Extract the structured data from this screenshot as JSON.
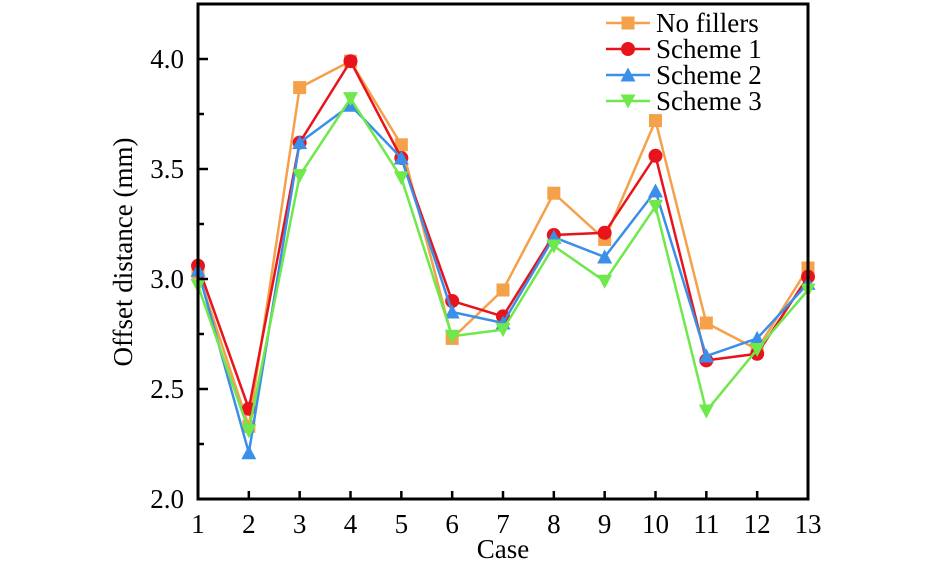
{
  "chart_data": {
    "type": "line",
    "title": "",
    "xlabel": "Case",
    "ylabel": "Offset distance (mm)",
    "x": [
      1,
      2,
      3,
      4,
      5,
      6,
      7,
      8,
      9,
      10,
      11,
      12,
      13
    ],
    "x_tick_labels": [
      "1",
      "2",
      "3",
      "4",
      "5",
      "6",
      "7",
      "8",
      "9",
      "10",
      "11",
      "12",
      "13"
    ],
    "xlim": [
      1,
      13
    ],
    "ylim": [
      2.0,
      4.25
    ],
    "y_ticks": [
      2.0,
      2.5,
      3.0,
      3.5,
      4.0
    ],
    "y_tick_labels": [
      "2.0",
      "2.5",
      "3.0",
      "3.5",
      "4.0"
    ],
    "y_minor_ticks": [
      2.25,
      2.75,
      3.25,
      3.75
    ],
    "grid": false,
    "legend_position": "top-right",
    "series": [
      {
        "name": "No fillers",
        "color": "#f5a04a",
        "marker": "square",
        "values": [
          3.03,
          2.33,
          3.87,
          3.99,
          3.61,
          2.73,
          2.95,
          3.39,
          3.18,
          3.72,
          2.8,
          2.68,
          3.05
        ]
      },
      {
        "name": "Scheme 1",
        "color": "#e8141c",
        "marker": "circle",
        "values": [
          3.06,
          2.41,
          3.62,
          3.99,
          3.55,
          2.9,
          2.83,
          3.2,
          3.21,
          3.56,
          2.63,
          2.66,
          3.01
        ]
      },
      {
        "name": "Scheme 2",
        "color": "#3b8fe8",
        "marker": "triangle-up",
        "values": [
          3.04,
          2.21,
          3.62,
          3.79,
          3.55,
          2.85,
          2.8,
          3.19,
          3.1,
          3.4,
          2.65,
          2.73,
          2.98
        ]
      },
      {
        "name": "Scheme 3",
        "color": "#6ee84a",
        "marker": "triangle-down",
        "values": [
          2.97,
          2.31,
          3.47,
          3.82,
          3.46,
          2.74,
          2.77,
          3.15,
          2.99,
          3.33,
          2.4,
          2.68,
          2.95
        ]
      }
    ]
  }
}
